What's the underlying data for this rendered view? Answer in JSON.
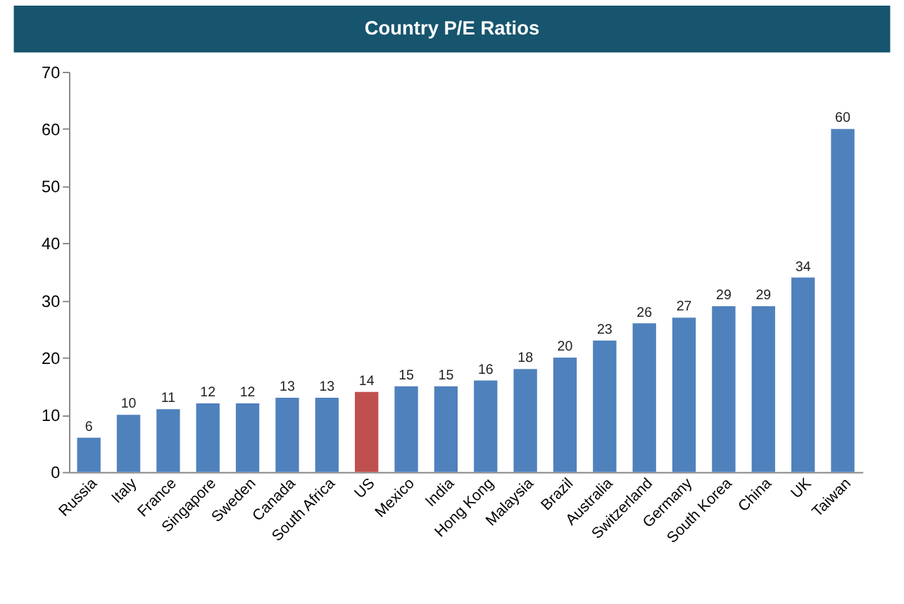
{
  "chart_data": {
    "type": "bar",
    "title": "Country P/E Ratios",
    "categories": [
      "Russia",
      "Italy",
      "France",
      "Singapore",
      "Sweden",
      "Canada",
      "South Africa",
      "US",
      "Mexico",
      "India",
      "Hong Kong",
      "Malaysia",
      "Brazil",
      "Australia",
      "Switzerland",
      "Germany",
      "South Korea",
      "China",
      "UK",
      "Taiwan"
    ],
    "values": [
      6,
      10,
      11,
      12,
      12,
      13,
      13,
      14,
      15,
      15,
      16,
      18,
      20,
      23,
      26,
      27,
      29,
      29,
      34,
      60
    ],
    "colors": [
      "#4f81bd",
      "#4f81bd",
      "#4f81bd",
      "#4f81bd",
      "#4f81bd",
      "#4f81bd",
      "#4f81bd",
      "#c0504d",
      "#4f81bd",
      "#4f81bd",
      "#4f81bd",
      "#4f81bd",
      "#4f81bd",
      "#4f81bd",
      "#4f81bd",
      "#4f81bd",
      "#4f81bd",
      "#4f81bd",
      "#4f81bd",
      "#4f81bd"
    ],
    "ylim": [
      0,
      70
    ],
    "yticks": [
      0,
      10,
      20,
      30,
      40,
      50,
      60,
      70
    ],
    "data_labels": true,
    "grid": false
  }
}
